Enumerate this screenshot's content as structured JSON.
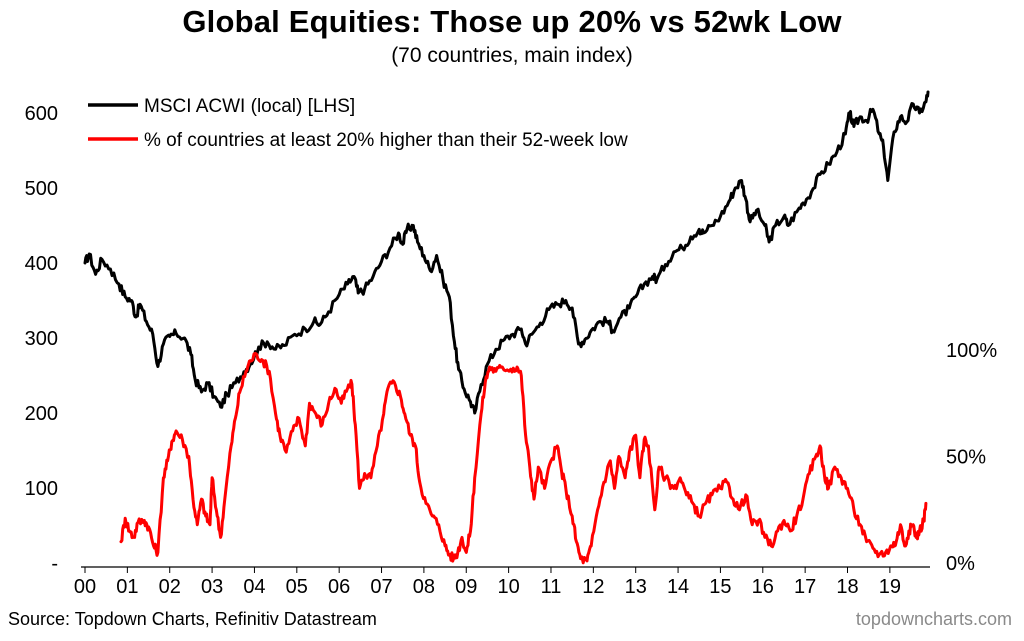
{
  "title": "Global Equities: Those up 20% vs 52wk Low",
  "subtitle": "(70 countries, main index)",
  "source": "Source: Topdown Charts, Refinitiv Datastream",
  "brand": "topdowncharts.com",
  "colors": {
    "series1": "#000000",
    "series2": "#ff0000",
    "brand": "#8a8a8a"
  },
  "chart_data": {
    "type": "line",
    "title": "Global Equities: Those up 20% vs 52wk Low",
    "subtitle": "(70 countries, main index)",
    "x_tick_labels": [
      "00",
      "01",
      "02",
      "03",
      "04",
      "05",
      "06",
      "07",
      "08",
      "09",
      "10",
      "11",
      "12",
      "13",
      "14",
      "15",
      "16",
      "17",
      "18",
      "19"
    ],
    "xlim": [
      2000.0,
      2019.9
    ],
    "y_left": {
      "ticks": [
        "-",
        "100",
        "200",
        "300",
        "400",
        "500",
        "600"
      ],
      "tick_values": [
        0,
        100,
        200,
        300,
        400,
        500,
        600
      ],
      "ylim": [
        0,
        620
      ]
    },
    "y_right": {
      "ticks": [
        "0%",
        "50%",
        "100%"
      ],
      "tick_values": [
        0,
        50,
        100
      ],
      "ylim": [
        0,
        100
      ]
    },
    "legend": {
      "placement": "top-left",
      "entries": [
        "MSCI ACWI (local) [LHS]",
        "% of countries at least 20% higher than their 52-week low"
      ]
    },
    "grid": false,
    "series": [
      {
        "name": "MSCI ACWI (local) [LHS]",
        "axis": "left",
        "color": "#000000",
        "points": [
          [
            2000.0,
            400
          ],
          [
            2000.1,
            412
          ],
          [
            2000.25,
            385
          ],
          [
            2000.4,
            405
          ],
          [
            2000.6,
            392
          ],
          [
            2000.8,
            372
          ],
          [
            2000.95,
            355
          ],
          [
            2001.1,
            350
          ],
          [
            2001.2,
            328
          ],
          [
            2001.3,
            345
          ],
          [
            2001.45,
            322
          ],
          [
            2001.6,
            305
          ],
          [
            2001.72,
            262
          ],
          [
            2001.85,
            292
          ],
          [
            2002.0,
            302
          ],
          [
            2002.15,
            306
          ],
          [
            2002.35,
            300
          ],
          [
            2002.5,
            278
          ],
          [
            2002.6,
            245
          ],
          [
            2002.75,
            228
          ],
          [
            2002.9,
            240
          ],
          [
            2003.05,
            222
          ],
          [
            2003.2,
            208
          ],
          [
            2003.35,
            225
          ],
          [
            2003.55,
            240
          ],
          [
            2003.75,
            255
          ],
          [
            2003.9,
            265
          ],
          [
            2004.1,
            288
          ],
          [
            2004.3,
            295
          ],
          [
            2004.5,
            285
          ],
          [
            2004.7,
            290
          ],
          [
            2004.95,
            305
          ],
          [
            2005.2,
            312
          ],
          [
            2005.4,
            322
          ],
          [
            2005.55,
            318
          ],
          [
            2005.75,
            335
          ],
          [
            2006.0,
            358
          ],
          [
            2006.2,
            372
          ],
          [
            2006.35,
            382
          ],
          [
            2006.45,
            360
          ],
          [
            2006.6,
            365
          ],
          [
            2006.8,
            382
          ],
          [
            2007.0,
            402
          ],
          [
            2007.2,
            420
          ],
          [
            2007.4,
            440
          ],
          [
            2007.5,
            425
          ],
          [
            2007.6,
            445
          ],
          [
            2007.75,
            450
          ],
          [
            2007.85,
            428
          ],
          [
            2008.0,
            410
          ],
          [
            2008.15,
            390
          ],
          [
            2008.3,
            410
          ],
          [
            2008.45,
            378
          ],
          [
            2008.6,
            355
          ],
          [
            2008.72,
            295
          ],
          [
            2008.82,
            258
          ],
          [
            2008.95,
            232
          ],
          [
            2009.1,
            215
          ],
          [
            2009.2,
            200
          ],
          [
            2009.35,
            238
          ],
          [
            2009.5,
            265
          ],
          [
            2009.7,
            285
          ],
          [
            2009.9,
            298
          ],
          [
            2010.1,
            305
          ],
          [
            2010.3,
            312
          ],
          [
            2010.4,
            292
          ],
          [
            2010.55,
            305
          ],
          [
            2010.75,
            320
          ],
          [
            2010.95,
            338
          ],
          [
            2011.15,
            345
          ],
          [
            2011.35,
            350
          ],
          [
            2011.5,
            340
          ],
          [
            2011.65,
            292
          ],
          [
            2011.8,
            298
          ],
          [
            2011.95,
            310
          ],
          [
            2012.15,
            322
          ],
          [
            2012.35,
            322
          ],
          [
            2012.45,
            310
          ],
          [
            2012.65,
            328
          ],
          [
            2012.85,
            340
          ],
          [
            2013.0,
            355
          ],
          [
            2013.2,
            372
          ],
          [
            2013.4,
            382
          ],
          [
            2013.5,
            378
          ],
          [
            2013.7,
            398
          ],
          [
            2013.9,
            415
          ],
          [
            2014.1,
            420
          ],
          [
            2014.3,
            435
          ],
          [
            2014.5,
            445
          ],
          [
            2014.6,
            440
          ],
          [
            2014.8,
            450
          ],
          [
            2015.0,
            462
          ],
          [
            2015.2,
            482
          ],
          [
            2015.35,
            500
          ],
          [
            2015.5,
            510
          ],
          [
            2015.6,
            485
          ],
          [
            2015.7,
            455
          ],
          [
            2015.85,
            470
          ],
          [
            2016.05,
            450
          ],
          [
            2016.15,
            428
          ],
          [
            2016.3,
            450
          ],
          [
            2016.5,
            462
          ],
          [
            2016.6,
            450
          ],
          [
            2016.8,
            468
          ],
          [
            2016.95,
            480
          ],
          [
            2017.15,
            495
          ],
          [
            2017.35,
            518
          ],
          [
            2017.55,
            532
          ],
          [
            2017.75,
            548
          ],
          [
            2017.95,
            572
          ],
          [
            2018.05,
            600
          ],
          [
            2018.15,
            582
          ],
          [
            2018.3,
            595
          ],
          [
            2018.45,
            590
          ],
          [
            2018.6,
            605
          ],
          [
            2018.75,
            572
          ],
          [
            2018.85,
            555
          ],
          [
            2018.95,
            510
          ],
          [
            2019.1,
            575
          ],
          [
            2019.25,
            595
          ],
          [
            2019.4,
            588
          ],
          [
            2019.55,
            612
          ],
          [
            2019.7,
            600
          ],
          [
            2019.85,
            615
          ],
          [
            2019.9,
            628
          ]
        ]
      },
      {
        "name": "% of countries at least 20% higher than their 52-week low",
        "axis": "right",
        "color": "#ff0000",
        "points": [
          [
            2000.85,
            10
          ],
          [
            2000.95,
            21
          ],
          [
            2001.05,
            15
          ],
          [
            2001.15,
            12
          ],
          [
            2001.25,
            19
          ],
          [
            2001.4,
            20
          ],
          [
            2001.5,
            17
          ],
          [
            2001.62,
            8
          ],
          [
            2001.72,
            5
          ],
          [
            2001.85,
            40
          ],
          [
            2001.95,
            48
          ],
          [
            2002.05,
            57
          ],
          [
            2002.15,
            62
          ],
          [
            2002.3,
            58
          ],
          [
            2002.45,
            50
          ],
          [
            2002.55,
            30
          ],
          [
            2002.65,
            18
          ],
          [
            2002.75,
            30
          ],
          [
            2002.85,
            22
          ],
          [
            2002.95,
            18
          ],
          [
            2003.0,
            40
          ],
          [
            2003.1,
            25
          ],
          [
            2003.2,
            12
          ],
          [
            2003.3,
            30
          ],
          [
            2003.45,
            55
          ],
          [
            2003.55,
            68
          ],
          [
            2003.65,
            80
          ],
          [
            2003.8,
            90
          ],
          [
            2003.9,
            95
          ],
          [
            2004.05,
            98
          ],
          [
            2004.2,
            95
          ],
          [
            2004.35,
            90
          ],
          [
            2004.5,
            70
          ],
          [
            2004.6,
            60
          ],
          [
            2004.75,
            52
          ],
          [
            2004.9,
            62
          ],
          [
            2005.05,
            68
          ],
          [
            2005.2,
            55
          ],
          [
            2005.3,
            75
          ],
          [
            2005.45,
            70
          ],
          [
            2005.6,
            65
          ],
          [
            2005.75,
            75
          ],
          [
            2005.9,
            82
          ],
          [
            2006.05,
            75
          ],
          [
            2006.2,
            82
          ],
          [
            2006.3,
            84
          ],
          [
            2006.38,
            65
          ],
          [
            2006.48,
            35
          ],
          [
            2006.6,
            42
          ],
          [
            2006.75,
            40
          ],
          [
            2006.9,
            55
          ],
          [
            2007.05,
            70
          ],
          [
            2007.15,
            82
          ],
          [
            2007.3,
            85
          ],
          [
            2007.45,
            78
          ],
          [
            2007.55,
            70
          ],
          [
            2007.68,
            60
          ],
          [
            2007.8,
            55
          ],
          [
            2007.9,
            38
          ],
          [
            2008.05,
            28
          ],
          [
            2008.2,
            22
          ],
          [
            2008.35,
            18
          ],
          [
            2008.5,
            8
          ],
          [
            2008.6,
            4
          ],
          [
            2008.7,
            2
          ],
          [
            2008.8,
            5
          ],
          [
            2008.9,
            12
          ],
          [
            2009.0,
            5
          ],
          [
            2009.1,
            15
          ],
          [
            2009.2,
            40
          ],
          [
            2009.35,
            70
          ],
          [
            2009.45,
            85
          ],
          [
            2009.55,
            92
          ],
          [
            2009.7,
            90
          ],
          [
            2009.85,
            92
          ],
          [
            2010.05,
            91
          ],
          [
            2010.2,
            92
          ],
          [
            2010.3,
            88
          ],
          [
            2010.4,
            60
          ],
          [
            2010.5,
            45
          ],
          [
            2010.6,
            30
          ],
          [
            2010.7,
            45
          ],
          [
            2010.85,
            35
          ],
          [
            2011.0,
            48
          ],
          [
            2011.15,
            55
          ],
          [
            2011.25,
            43
          ],
          [
            2011.35,
            35
          ],
          [
            2011.5,
            22
          ],
          [
            2011.6,
            10
          ],
          [
            2011.7,
            2
          ],
          [
            2011.85,
            1
          ],
          [
            2011.95,
            8
          ],
          [
            2012.1,
            25
          ],
          [
            2012.25,
            38
          ],
          [
            2012.4,
            48
          ],
          [
            2012.5,
            35
          ],
          [
            2012.6,
            50
          ],
          [
            2012.75,
            40
          ],
          [
            2012.85,
            52
          ],
          [
            2013.0,
            60
          ],
          [
            2013.1,
            40
          ],
          [
            2013.2,
            58
          ],
          [
            2013.3,
            55
          ],
          [
            2013.45,
            25
          ],
          [
            2013.55,
            45
          ],
          [
            2013.7,
            40
          ],
          [
            2013.9,
            35
          ],
          [
            2014.05,
            40
          ],
          [
            2014.2,
            32
          ],
          [
            2014.35,
            28
          ],
          [
            2014.5,
            22
          ],
          [
            2014.65,
            28
          ],
          [
            2014.8,
            32
          ],
          [
            2015.0,
            35
          ],
          [
            2015.15,
            38
          ],
          [
            2015.3,
            30
          ],
          [
            2015.45,
            25
          ],
          [
            2015.6,
            32
          ],
          [
            2015.75,
            18
          ],
          [
            2015.9,
            20
          ],
          [
            2016.05,
            12
          ],
          [
            2016.2,
            8
          ],
          [
            2016.35,
            15
          ],
          [
            2016.5,
            20
          ],
          [
            2016.65,
            15
          ],
          [
            2016.8,
            22
          ],
          [
            2016.95,
            30
          ],
          [
            2017.1,
            42
          ],
          [
            2017.25,
            50
          ],
          [
            2017.35,
            55
          ],
          [
            2017.45,
            42
          ],
          [
            2017.55,
            35
          ],
          [
            2017.7,
            45
          ],
          [
            2017.85,
            40
          ],
          [
            2018.0,
            35
          ],
          [
            2018.15,
            25
          ],
          [
            2018.3,
            18
          ],
          [
            2018.45,
            10
          ],
          [
            2018.6,
            7
          ],
          [
            2018.75,
            4
          ],
          [
            2018.9,
            5
          ],
          [
            2019.05,
            8
          ],
          [
            2019.15,
            10
          ],
          [
            2019.25,
            18
          ],
          [
            2019.35,
            8
          ],
          [
            2019.45,
            15
          ],
          [
            2019.55,
            18
          ],
          [
            2019.62,
            12
          ],
          [
            2019.7,
            15
          ],
          [
            2019.8,
            20
          ],
          [
            2019.85,
            28
          ]
        ]
      }
    ]
  }
}
